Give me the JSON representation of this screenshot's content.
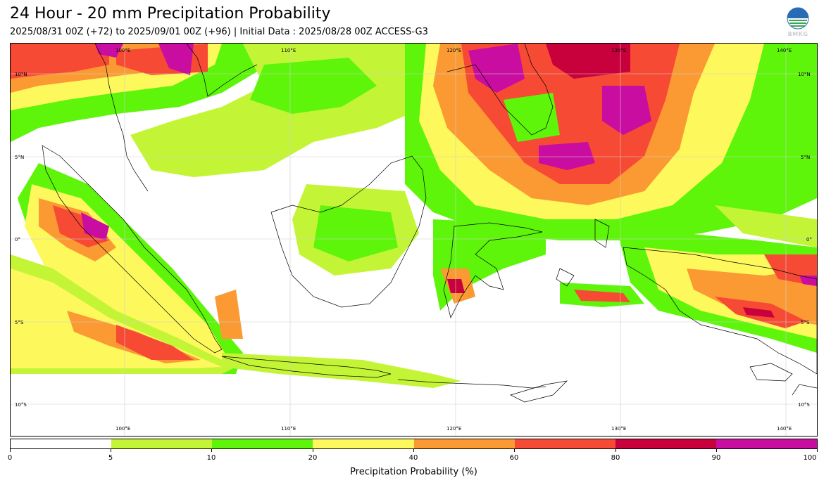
{
  "header": {
    "title": "24 Hour - 20 mm Precipitation Probability",
    "subtitle": "2025/08/31 00Z (+72) to 2025/09/01 00Z (+96) | Initial Data : 2025/08/28 00Z ACCESS-G3",
    "logo_text": "BMKG"
  },
  "map": {
    "lon_labels": [
      "100°E",
      "110°E",
      "120°E",
      "130°E",
      "140°E"
    ],
    "lat_labels": [
      "10°N",
      "5°N",
      "0°",
      "5°S",
      "10°S"
    ],
    "gridlines": true
  },
  "colorbar": {
    "title": "Precipitation Probability (%)",
    "tick_labels": [
      "0",
      "5",
      "10",
      "20",
      "40",
      "60",
      "80",
      "90",
      "100"
    ],
    "bins": [
      {
        "range": "0-5",
        "color": "#ffffff"
      },
      {
        "range": "5-10",
        "color": "#c3f536"
      },
      {
        "range": "10-20",
        "color": "#5ef50b"
      },
      {
        "range": "20-40",
        "color": "#fdf85c"
      },
      {
        "range": "40-60",
        "color": "#fb9a33"
      },
      {
        "range": "60-80",
        "color": "#f74a34"
      },
      {
        "range": "80-90",
        "color": "#c8003b"
      },
      {
        "range": "90-100",
        "color": "#c90da0"
      }
    ]
  }
}
